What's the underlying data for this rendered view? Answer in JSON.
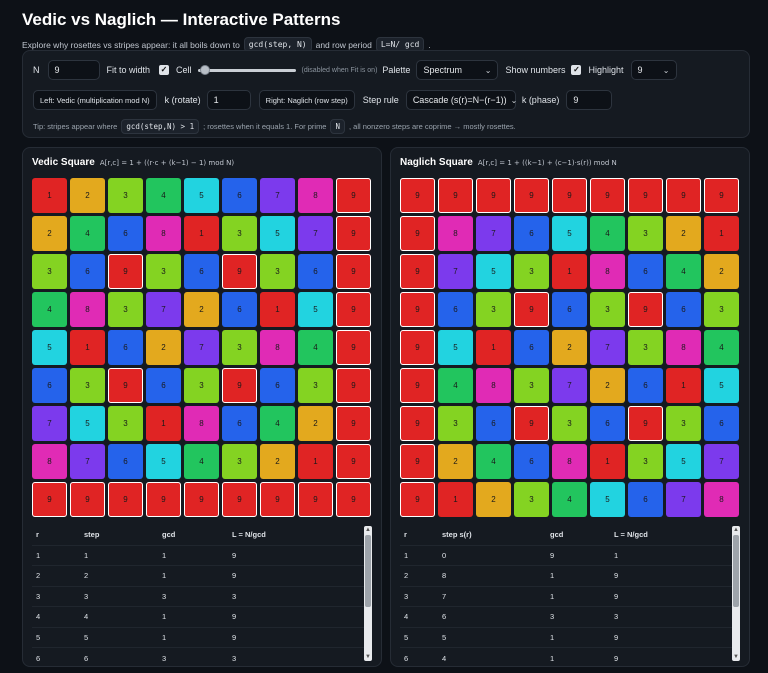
{
  "title": "Vedic vs Naglich — Interactive Patterns",
  "subtitle": {
    "pre": "Explore why rosettes vs stripes appear: it all boils down to",
    "code1": "gcd(step, N)",
    "mid": "and row period",
    "code2": "L=N/ gcd",
    "post": "."
  },
  "controls": {
    "n_label": "N",
    "n_value": "9",
    "fit_label": "Fit to width",
    "fit_checked": true,
    "cell_label": "Cell",
    "cell_note": "(disabled when Fit is on)",
    "palette_label": "Palette",
    "palette_value": "Spectrum",
    "show_numbers_label": "Show numbers",
    "show_numbers_checked": true,
    "highlight_label": "Highlight",
    "highlight_value": "9",
    "left_pill": "Left: Vedic (multiplication mod N)",
    "k_rotate_label": "k (rotate)",
    "k_rotate_value": "1",
    "right_pill": "Right: Naglich (row step)",
    "step_rule_label": "Step rule",
    "step_rule_value": "Cascade (s(r)=N−(r−1))",
    "k_phase_label": "k (phase)",
    "k_phase_value": "9",
    "tip": {
      "t1": "Tip: stripes appear where",
      "c1": "gcd(step,N) > 1",
      "t2": "; rosettes when it equals 1. For prime",
      "c2": "N",
      "t3": ", all nonzero steps are coprime → mostly rosettes."
    }
  },
  "palette": {
    "1": "#e02424",
    "2": "#e3a91e",
    "3": "#84d322",
    "4": "#22c55e",
    "5": "#22d3e0",
    "6": "#2563eb",
    "7": "#7c3aed",
    "8": "#e02bb5",
    "9": "#e02424"
  },
  "highlight_color": "#ffffff",
  "vedic": {
    "name": "Vedic Square",
    "formula": "A[r,c] = 1 + ((r·c + (k−1) − 1) mod N)",
    "grid": [
      [
        1,
        2,
        3,
        4,
        5,
        6,
        7,
        8,
        9
      ],
      [
        2,
        4,
        6,
        8,
        1,
        3,
        5,
        7,
        9
      ],
      [
        3,
        6,
        9,
        3,
        6,
        9,
        3,
        6,
        9
      ],
      [
        4,
        8,
        3,
        7,
        2,
        6,
        1,
        5,
        9
      ],
      [
        5,
        1,
        6,
        2,
        7,
        3,
        8,
        4,
        9
      ],
      [
        6,
        3,
        9,
        6,
        3,
        9,
        6,
        3,
        9
      ],
      [
        7,
        5,
        3,
        1,
        8,
        6,
        4,
        2,
        9
      ],
      [
        8,
        7,
        6,
        5,
        4,
        3,
        2,
        1,
        9
      ],
      [
        9,
        9,
        9,
        9,
        9,
        9,
        9,
        9,
        9
      ]
    ],
    "table": {
      "headers": [
        "r",
        "step",
        "gcd",
        "L = N/gcd"
      ],
      "rows": [
        [
          "1",
          "1",
          "1",
          "9"
        ],
        [
          "2",
          "2",
          "1",
          "9"
        ],
        [
          "3",
          "3",
          "3",
          "3"
        ],
        [
          "4",
          "4",
          "1",
          "9"
        ],
        [
          "5",
          "5",
          "1",
          "9"
        ],
        [
          "6",
          "6",
          "3",
          "3"
        ]
      ]
    }
  },
  "naglich": {
    "name": "Naglich Square",
    "formula": "A[r,c] = 1 + ((k−1) + (c−1)·s(r)) mod N",
    "grid": [
      [
        9,
        9,
        9,
        9,
        9,
        9,
        9,
        9,
        9
      ],
      [
        9,
        8,
        7,
        6,
        5,
        4,
        3,
        2,
        1
      ],
      [
        9,
        7,
        5,
        3,
        1,
        8,
        6,
        4,
        2
      ],
      [
        9,
        6,
        3,
        9,
        6,
        3,
        9,
        6,
        3
      ],
      [
        9,
        5,
        1,
        6,
        2,
        7,
        3,
        8,
        4
      ],
      [
        9,
        4,
        8,
        3,
        7,
        2,
        6,
        1,
        5
      ],
      [
        9,
        3,
        6,
        9,
        3,
        6,
        9,
        3,
        6
      ],
      [
        9,
        2,
        4,
        6,
        8,
        1,
        3,
        5,
        7
      ],
      [
        9,
        1,
        2,
        3,
        4,
        5,
        6,
        7,
        8
      ]
    ],
    "table": {
      "headers": [
        "r",
        "step s(r)",
        "gcd",
        "L = N/gcd"
      ],
      "rows": [
        [
          "1",
          "0",
          "9",
          "1"
        ],
        [
          "2",
          "8",
          "1",
          "9"
        ],
        [
          "3",
          "7",
          "1",
          "9"
        ],
        [
          "4",
          "6",
          "3",
          "3"
        ],
        [
          "5",
          "5",
          "1",
          "9"
        ],
        [
          "6",
          "4",
          "1",
          "9"
        ]
      ]
    }
  }
}
